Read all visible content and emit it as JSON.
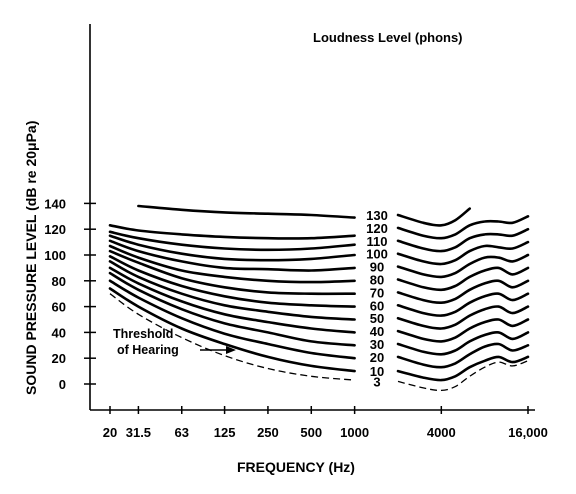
{
  "chart_data": {
    "type": "line",
    "title": "",
    "xlabel": "FREQUENCY (Hz)",
    "ylabel": "SOUND PRESSURE LEVEL (dB re 20μPa)",
    "x_scale": "log",
    "xlim": [
      20,
      16000
    ],
    "ylim": [
      -10,
      140
    ],
    "x_ticks": [
      {
        "value": 20,
        "label": "20"
      },
      {
        "value": 31.5,
        "label": "31.5"
      },
      {
        "value": 63,
        "label": "63"
      },
      {
        "value": 125,
        "label": "125"
      },
      {
        "value": 250,
        "label": "250"
      },
      {
        "value": 500,
        "label": "500"
      },
      {
        "value": 1000,
        "label": "1000"
      },
      {
        "value": 4000,
        "label": "4000"
      },
      {
        "value": 16000,
        "label": "16,000"
      }
    ],
    "y_ticks": [
      {
        "value": 0,
        "label": "0"
      },
      {
        "value": 20,
        "label": "20"
      },
      {
        "value": 40,
        "label": "40"
      },
      {
        "value": 60,
        "label": "60"
      },
      {
        "value": 80,
        "label": "80"
      },
      {
        "value": 100,
        "label": "100"
      },
      {
        "value": 120,
        "label": "120"
      },
      {
        "value": 140,
        "label": "140"
      }
    ],
    "legend_title": "Loudness Level (phons)",
    "threshold_label": [
      "Threshold",
      "of Hearing"
    ],
    "x_points": [
      20,
      31.5,
      63,
      125,
      250,
      500,
      1000,
      2000,
      3000,
      4000,
      5000,
      6300,
      8000,
      10000,
      12500,
      16000
    ],
    "series": [
      {
        "name": "3",
        "dashed": true,
        "values": [
          70,
          54,
          36,
          22,
          12,
          6,
          3,
          2,
          -3,
          -5,
          -2,
          6,
          13,
          17,
          14,
          18
        ]
      },
      {
        "name": "10",
        "values": [
          74,
          60,
          43,
          31,
          21,
          14,
          10,
          10,
          5,
          3,
          6,
          13,
          18,
          21,
          17,
          21
        ]
      },
      {
        "name": "20",
        "values": [
          80,
          67,
          51,
          39,
          31,
          24,
          20,
          21,
          15,
          13,
          16,
          23,
          29,
          31,
          26,
          30
        ]
      },
      {
        "name": "30",
        "values": [
          86,
          73,
          58,
          47,
          40,
          33,
          30,
          31,
          25,
          23,
          26,
          33,
          38,
          40,
          35,
          40
        ]
      },
      {
        "name": "40",
        "values": [
          90,
          78,
          64,
          54,
          48,
          43,
          40,
          41,
          35,
          33,
          36,
          43,
          48,
          50,
          45,
          50
        ]
      },
      {
        "name": "50",
        "values": [
          95,
          83,
          70,
          61,
          56,
          52,
          50,
          51,
          45,
          43,
          46,
          53,
          58,
          60,
          55,
          60
        ]
      },
      {
        "name": "60",
        "values": [
          99,
          88,
          76,
          68,
          63,
          61,
          60,
          61,
          55,
          53,
          56,
          63,
          68,
          70,
          65,
          70
        ]
      },
      {
        "name": "70",
        "values": [
          103,
          94,
          82,
          75,
          71,
          70,
          70,
          71,
          65,
          63,
          66,
          73,
          78,
          80,
          75,
          80
        ]
      },
      {
        "name": "80",
        "values": [
          107,
          98,
          88,
          83,
          80,
          79,
          80,
          81,
          75,
          73,
          76,
          83,
          88,
          90,
          85,
          90
        ]
      },
      {
        "name": "90",
        "values": [
          111,
          103,
          95,
          90,
          89,
          88,
          90,
          91,
          85,
          83,
          86,
          93,
          98,
          98,
          95,
          100
        ]
      },
      {
        "name": "100",
        "values": [
          115,
          108,
          101,
          97,
          96,
          97,
          100,
          101,
          95,
          93,
          96,
          103,
          107,
          106,
          105,
          110
        ]
      },
      {
        "name": "110",
        "values": [
          118,
          113,
          108,
          105,
          104,
          105,
          108,
          111,
          105,
          103,
          106,
          113,
          116,
          116,
          115,
          120
        ]
      },
      {
        "name": "120",
        "values": [
          123,
          119,
          116,
          114,
          113,
          113,
          115,
          121,
          115,
          113,
          116,
          123,
          126,
          126,
          125,
          130
        ]
      },
      {
        "name": "130",
        "values": [
          null,
          138,
          135,
          133,
          132,
          131,
          129,
          131,
          125,
          123,
          127,
          136,
          null,
          null,
          null,
          null
        ]
      }
    ],
    "grid": false,
    "legend_placement": "labels along curves"
  }
}
